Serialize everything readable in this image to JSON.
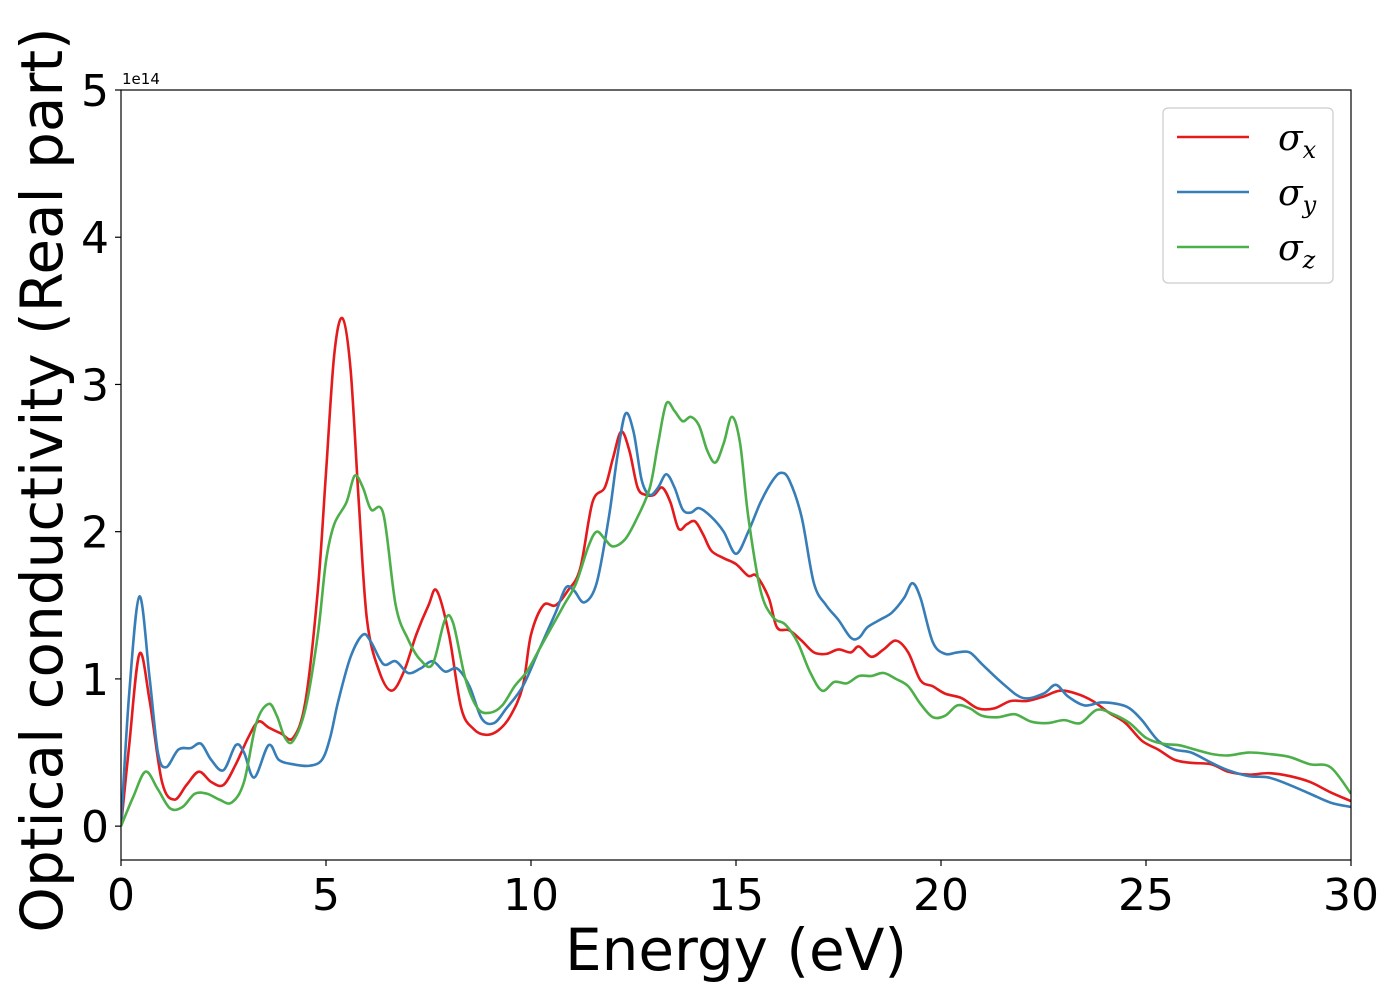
{
  "chart_data": {
    "type": "line",
    "xlabel": "Energy (eV)",
    "ylabel": "Optical conductivity (Real part)",
    "y_offset_label": "1e14",
    "xlim": [
      0,
      30
    ],
    "ylim": [
      -0.23,
      5
    ],
    "x_ticks": [
      0,
      5,
      10,
      15,
      20,
      25,
      30
    ],
    "y_ticks": [
      0,
      1,
      2,
      3,
      4,
      5
    ],
    "grid": false,
    "legend_position": "upper-right",
    "series": [
      {
        "name": "σx",
        "symbol": "σ",
        "subscript": "x",
        "color": "#e41a1c",
        "x": [
          0,
          0.2,
          0.45,
          0.7,
          1.0,
          1.3,
          1.6,
          1.9,
          2.2,
          2.5,
          2.8,
          3.1,
          3.35,
          3.6,
          3.9,
          4.2,
          4.5,
          4.8,
          5.0,
          5.2,
          5.4,
          5.6,
          5.8,
          6.0,
          6.3,
          6.6,
          6.9,
          7.2,
          7.5,
          7.7,
          8.0,
          8.3,
          8.6,
          8.9,
          9.2,
          9.5,
          9.8,
          10.0,
          10.3,
          10.6,
          10.9,
          11.2,
          11.5,
          11.8,
          12.0,
          12.2,
          12.4,
          12.6,
          12.8,
          13.0,
          13.2,
          13.4,
          13.6,
          13.8,
          14.0,
          14.2,
          14.4,
          14.7,
          15.0,
          15.3,
          15.5,
          15.8,
          16.0,
          16.3,
          16.6,
          16.9,
          17.2,
          17.5,
          17.8,
          18.0,
          18.3,
          18.6,
          18.9,
          19.2,
          19.5,
          19.8,
          20.1,
          20.5,
          20.9,
          21.3,
          21.7,
          22.1,
          22.5,
          22.9,
          23.3,
          23.7,
          24.1,
          24.5,
          24.9,
          25.3,
          25.7,
          26.1,
          26.6,
          27.0,
          27.5,
          28.0,
          28.5,
          29.0,
          29.5,
          30.0
        ],
        "values": [
          0.0,
          0.55,
          1.17,
          0.85,
          0.3,
          0.18,
          0.28,
          0.37,
          0.3,
          0.28,
          0.42,
          0.6,
          0.71,
          0.67,
          0.63,
          0.6,
          0.85,
          1.6,
          2.4,
          3.2,
          3.45,
          3.1,
          2.2,
          1.4,
          1.05,
          0.92,
          1.05,
          1.3,
          1.5,
          1.6,
          1.3,
          0.8,
          0.66,
          0.62,
          0.65,
          0.75,
          0.95,
          1.3,
          1.5,
          1.5,
          1.6,
          1.75,
          2.2,
          2.3,
          2.5,
          2.68,
          2.55,
          2.3,
          2.25,
          2.25,
          2.3,
          2.2,
          2.02,
          2.05,
          2.07,
          1.98,
          1.87,
          1.82,
          1.78,
          1.7,
          1.7,
          1.55,
          1.35,
          1.33,
          1.26,
          1.18,
          1.17,
          1.2,
          1.18,
          1.22,
          1.15,
          1.2,
          1.26,
          1.18,
          0.99,
          0.95,
          0.9,
          0.87,
          0.8,
          0.8,
          0.85,
          0.85,
          0.88,
          0.92,
          0.9,
          0.85,
          0.77,
          0.7,
          0.58,
          0.52,
          0.45,
          0.43,
          0.42,
          0.37,
          0.35,
          0.36,
          0.34,
          0.3,
          0.23,
          0.17
        ]
      },
      {
        "name": "σy",
        "symbol": "σ",
        "subscript": "y",
        "color": "#377eb8",
        "x": [
          0,
          0.2,
          0.45,
          0.7,
          0.9,
          1.1,
          1.4,
          1.7,
          1.95,
          2.2,
          2.5,
          2.8,
          3.0,
          3.25,
          3.6,
          3.85,
          4.2,
          4.6,
          4.9,
          5.1,
          5.3,
          5.6,
          5.9,
          6.1,
          6.4,
          6.7,
          7.0,
          7.3,
          7.6,
          7.9,
          8.2,
          8.5,
          8.8,
          9.1,
          9.4,
          9.8,
          10.2,
          10.6,
          10.85,
          11.05,
          11.3,
          11.6,
          11.9,
          12.1,
          12.3,
          12.5,
          12.7,
          12.9,
          13.1,
          13.3,
          13.5,
          13.7,
          13.9,
          14.1,
          14.4,
          14.7,
          15.0,
          15.3,
          15.6,
          15.9,
          16.1,
          16.3,
          16.6,
          16.9,
          17.2,
          17.5,
          17.8,
          18.0,
          18.2,
          18.5,
          18.8,
          19.1,
          19.3,
          19.5,
          19.8,
          20.1,
          20.4,
          20.7,
          21.0,
          21.5,
          22.0,
          22.5,
          22.8,
          23.1,
          23.5,
          23.9,
          24.3,
          24.6,
          24.9,
          25.3,
          25.7,
          26.1,
          26.6,
          27.0,
          27.5,
          28.0,
          28.5,
          29.0,
          29.5,
          30.0
        ],
        "values": [
          0.0,
          0.9,
          1.56,
          1.0,
          0.5,
          0.4,
          0.52,
          0.53,
          0.56,
          0.45,
          0.38,
          0.55,
          0.5,
          0.33,
          0.55,
          0.45,
          0.42,
          0.41,
          0.45,
          0.6,
          0.85,
          1.15,
          1.3,
          1.25,
          1.1,
          1.12,
          1.04,
          1.07,
          1.12,
          1.05,
          1.07,
          0.95,
          0.73,
          0.7,
          0.8,
          0.95,
          1.2,
          1.45,
          1.62,
          1.6,
          1.52,
          1.65,
          2.1,
          2.5,
          2.8,
          2.68,
          2.35,
          2.25,
          2.3,
          2.39,
          2.3,
          2.15,
          2.13,
          2.16,
          2.1,
          2.0,
          1.85,
          2.0,
          2.2,
          2.35,
          2.4,
          2.35,
          2.1,
          1.65,
          1.5,
          1.4,
          1.28,
          1.28,
          1.35,
          1.4,
          1.45,
          1.55,
          1.65,
          1.55,
          1.25,
          1.17,
          1.18,
          1.18,
          1.1,
          0.97,
          0.87,
          0.9,
          0.96,
          0.88,
          0.82,
          0.84,
          0.83,
          0.8,
          0.72,
          0.58,
          0.52,
          0.5,
          0.43,
          0.38,
          0.34,
          0.33,
          0.28,
          0.22,
          0.16,
          0.13
        ]
      },
      {
        "name": "σz",
        "symbol": "σ",
        "subscript": "z",
        "color": "#4daf4a",
        "x": [
          0,
          0.3,
          0.6,
          0.9,
          1.2,
          1.5,
          1.8,
          2.1,
          2.4,
          2.7,
          3.0,
          3.3,
          3.6,
          3.8,
          4.0,
          4.2,
          4.5,
          4.8,
          5.0,
          5.2,
          5.5,
          5.7,
          5.9,
          6.1,
          6.4,
          6.7,
          7.0,
          7.3,
          7.6,
          7.9,
          8.1,
          8.4,
          8.7,
          9.0,
          9.3,
          9.6,
          9.9,
          10.2,
          10.5,
          10.8,
          11.1,
          11.4,
          11.6,
          11.8,
          12.0,
          12.3,
          12.6,
          12.9,
          13.1,
          13.3,
          13.5,
          13.7,
          13.9,
          14.1,
          14.3,
          14.5,
          14.7,
          14.9,
          15.1,
          15.3,
          15.6,
          15.9,
          16.2,
          16.5,
          16.8,
          17.1,
          17.4,
          17.7,
          18.0,
          18.3,
          18.6,
          18.9,
          19.2,
          19.5,
          19.8,
          20.1,
          20.4,
          20.7,
          21.0,
          21.4,
          21.8,
          22.2,
          22.6,
          23.0,
          23.4,
          23.8,
          24.2,
          24.6,
          25.0,
          25.4,
          25.8,
          26.2,
          26.6,
          27.0,
          27.5,
          28.0,
          28.5,
          29.0,
          29.5,
          30.0
        ],
        "values": [
          0.0,
          0.2,
          0.37,
          0.25,
          0.12,
          0.13,
          0.22,
          0.22,
          0.18,
          0.16,
          0.3,
          0.7,
          0.83,
          0.75,
          0.6,
          0.58,
          0.8,
          1.3,
          1.8,
          2.05,
          2.2,
          2.38,
          2.3,
          2.15,
          2.12,
          1.5,
          1.27,
          1.13,
          1.1,
          1.4,
          1.38,
          1.0,
          0.8,
          0.77,
          0.82,
          0.95,
          1.05,
          1.2,
          1.35,
          1.5,
          1.65,
          1.9,
          2.0,
          1.95,
          1.9,
          1.95,
          2.1,
          2.3,
          2.6,
          2.87,
          2.82,
          2.75,
          2.78,
          2.72,
          2.55,
          2.47,
          2.6,
          2.78,
          2.6,
          2.1,
          1.6,
          1.42,
          1.37,
          1.25,
          1.05,
          0.92,
          0.98,
          0.97,
          1.02,
          1.02,
          1.04,
          1.0,
          0.95,
          0.83,
          0.74,
          0.75,
          0.82,
          0.8,
          0.75,
          0.74,
          0.76,
          0.71,
          0.7,
          0.72,
          0.7,
          0.79,
          0.76,
          0.7,
          0.6,
          0.56,
          0.55,
          0.52,
          0.49,
          0.48,
          0.5,
          0.49,
          0.47,
          0.42,
          0.4,
          0.22
        ]
      }
    ]
  }
}
